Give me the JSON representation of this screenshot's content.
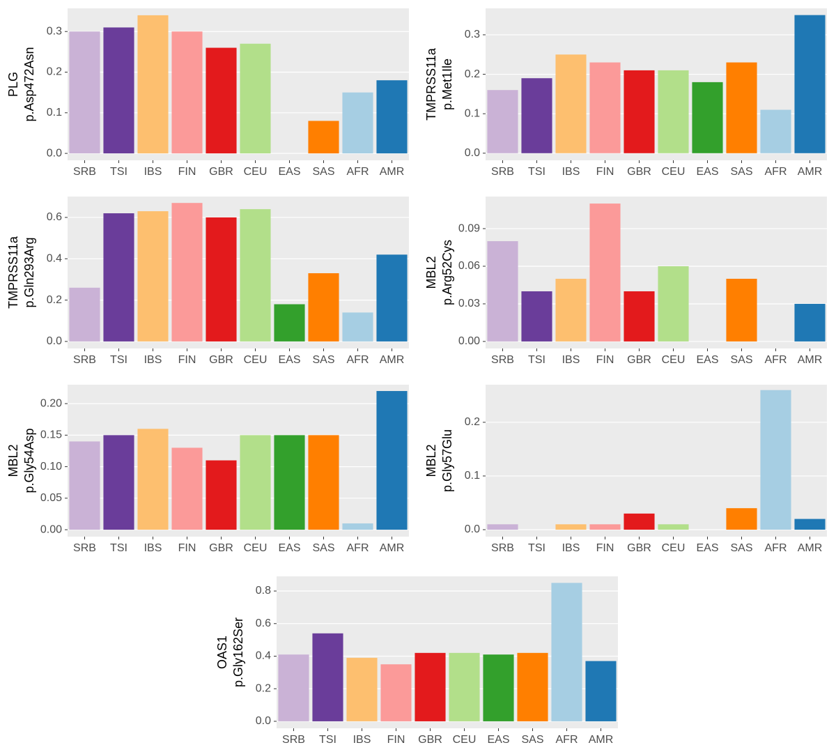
{
  "chart_data": [
    {
      "type": "bar",
      "ylabel": [
        "PLG",
        "p.Asp472Asn"
      ],
      "categories": [
        "SRB",
        "TSI",
        "IBS",
        "FIN",
        "GBR",
        "CEU",
        "EAS",
        "SAS",
        "AFR",
        "AMR"
      ],
      "values": [
        0.3,
        0.31,
        0.34,
        0.3,
        0.26,
        0.27,
        0,
        0.08,
        0.15,
        0.18
      ],
      "colors": [
        "#cab2d6",
        "#6a3d9a",
        "#fdbf6f",
        "#fb9a99",
        "#e31a1c",
        "#b2df8a",
        "#33a02c",
        "#ff7f00",
        "#a6cee3",
        "#1f78b4"
      ],
      "ylim": [
        -0.017,
        0.357
      ],
      "yticks": [
        {
          "value": 0,
          "label": "0.0"
        },
        {
          "value": 0.1,
          "label": "0.1"
        },
        {
          "value": 0.2,
          "label": "0.2"
        },
        {
          "value": 0.3,
          "label": "0.3"
        }
      ],
      "grid": true
    },
    {
      "type": "bar",
      "ylabel": [
        "TMPRSS11a",
        "p.Met1Ile"
      ],
      "categories": [
        "SRB",
        "TSI",
        "IBS",
        "FIN",
        "GBR",
        "CEU",
        "EAS",
        "SAS",
        "AFR",
        "AMR"
      ],
      "values": [
        0.16,
        0.19,
        0.25,
        0.23,
        0.21,
        0.21,
        0.18,
        0.23,
        0.11,
        0.35
      ],
      "colors": [
        "#cab2d6",
        "#6a3d9a",
        "#fdbf6f",
        "#fb9a99",
        "#e31a1c",
        "#b2df8a",
        "#33a02c",
        "#ff7f00",
        "#a6cee3",
        "#1f78b4"
      ],
      "ylim": [
        -0.018,
        0.367
      ],
      "yticks": [
        {
          "value": 0,
          "label": "0.0"
        },
        {
          "value": 0.1,
          "label": "0.1"
        },
        {
          "value": 0.2,
          "label": "0.2"
        },
        {
          "value": 0.3,
          "label": "0.3"
        }
      ],
      "grid": true
    },
    {
      "type": "bar",
      "ylabel": [
        "TMPRSS11a",
        "p.Gln293Arg"
      ],
      "categories": [
        "SRB",
        "TSI",
        "IBS",
        "FIN",
        "GBR",
        "CEU",
        "EAS",
        "SAS",
        "AFR",
        "AMR"
      ],
      "values": [
        0.26,
        0.62,
        0.63,
        0.67,
        0.6,
        0.64,
        0.18,
        0.33,
        0.14,
        0.42
      ],
      "colors": [
        "#cab2d6",
        "#6a3d9a",
        "#fdbf6f",
        "#fb9a99",
        "#e31a1c",
        "#b2df8a",
        "#33a02c",
        "#ff7f00",
        "#a6cee3",
        "#1f78b4"
      ],
      "ylim": [
        -0.034,
        0.701
      ],
      "yticks": [
        {
          "value": 0,
          "label": "0.0"
        },
        {
          "value": 0.2,
          "label": "0.2"
        },
        {
          "value": 0.4,
          "label": "0.4"
        },
        {
          "value": 0.6,
          "label": "0.6"
        }
      ],
      "grid": true
    },
    {
      "type": "bar",
      "ylabel": [
        "MBL2",
        "p.Arg52Cys"
      ],
      "categories": [
        "SRB",
        "TSI",
        "IBS",
        "FIN",
        "GBR",
        "CEU",
        "EAS",
        "SAS",
        "AFR",
        "AMR"
      ],
      "values": [
        0.08,
        0.04,
        0.05,
        0.11,
        0.04,
        0.06,
        0,
        0.05,
        0,
        0.03
      ],
      "colors": [
        "#cab2d6",
        "#6a3d9a",
        "#fdbf6f",
        "#fb9a99",
        "#e31a1c",
        "#b2df8a",
        "#33a02c",
        "#ff7f00",
        "#a6cee3",
        "#1f78b4"
      ],
      "ylim": [
        -0.0056,
        0.1156
      ],
      "yticks": [
        {
          "value": 0,
          "label": "0.00"
        },
        {
          "value": 0.03,
          "label": "0.03"
        },
        {
          "value": 0.06,
          "label": "0.06"
        },
        {
          "value": 0.09,
          "label": "0.09"
        }
      ],
      "grid": true
    },
    {
      "type": "bar",
      "ylabel": [
        "MBL2",
        "p.Gly54Asp"
      ],
      "categories": [
        "SRB",
        "TSI",
        "IBS",
        "FIN",
        "GBR",
        "CEU",
        "EAS",
        "SAS",
        "AFR",
        "AMR"
      ],
      "values": [
        0.14,
        0.15,
        0.16,
        0.13,
        0.11,
        0.15,
        0.15,
        0.15,
        0.01,
        0.22
      ],
      "colors": [
        "#cab2d6",
        "#6a3d9a",
        "#fdbf6f",
        "#fb9a99",
        "#e31a1c",
        "#b2df8a",
        "#33a02c",
        "#ff7f00",
        "#a6cee3",
        "#1f78b4"
      ],
      "ylim": [
        -0.011,
        0.23
      ],
      "yticks": [
        {
          "value": 0,
          "label": "0.00"
        },
        {
          "value": 0.05,
          "label": "0.05"
        },
        {
          "value": 0.1,
          "label": "0.10"
        },
        {
          "value": 0.15,
          "label": "0.15"
        },
        {
          "value": 0.2,
          "label": "0.20"
        }
      ],
      "grid": true
    },
    {
      "type": "bar",
      "ylabel": [
        "MBL2",
        "p.Gly57Glu"
      ],
      "categories": [
        "SRB",
        "TSI",
        "IBS",
        "FIN",
        "GBR",
        "CEU",
        "EAS",
        "SAS",
        "AFR",
        "AMR"
      ],
      "values": [
        0.01,
        0,
        0.01,
        0.01,
        0.03,
        0.01,
        0,
        0.04,
        0.26,
        0.02
      ],
      "colors": [
        "#cab2d6",
        "#6a3d9a",
        "#fdbf6f",
        "#fb9a99",
        "#e31a1c",
        "#b2df8a",
        "#33a02c",
        "#ff7f00",
        "#a6cee3",
        "#1f78b4"
      ],
      "ylim": [
        -0.013,
        0.27
      ],
      "yticks": [
        {
          "value": 0,
          "label": "0.0"
        },
        {
          "value": 0.1,
          "label": "0.1"
        },
        {
          "value": 0.2,
          "label": "0.2"
        }
      ],
      "grid": true
    },
    {
      "type": "bar",
      "ylabel": [
        "OAS1",
        "p.Gly162Ser"
      ],
      "categories": [
        "SRB",
        "TSI",
        "IBS",
        "FIN",
        "GBR",
        "CEU",
        "EAS",
        "SAS",
        "AFR",
        "AMR"
      ],
      "values": [
        0.41,
        0.54,
        0.39,
        0.35,
        0.42,
        0.42,
        0.41,
        0.42,
        0.85,
        0.37
      ],
      "colors": [
        "#cab2d6",
        "#6a3d9a",
        "#fdbf6f",
        "#fb9a99",
        "#e31a1c",
        "#b2df8a",
        "#33a02c",
        "#ff7f00",
        "#a6cee3",
        "#1f78b4"
      ],
      "ylim": [
        -0.043,
        0.89
      ],
      "yticks": [
        {
          "value": 0,
          "label": "0.0"
        },
        {
          "value": 0.2,
          "label": "0.2"
        },
        {
          "value": 0.4,
          "label": "0.4"
        },
        {
          "value": 0.6,
          "label": "0.6"
        },
        {
          "value": 0.8,
          "label": "0.8"
        }
      ],
      "grid": true
    }
  ]
}
